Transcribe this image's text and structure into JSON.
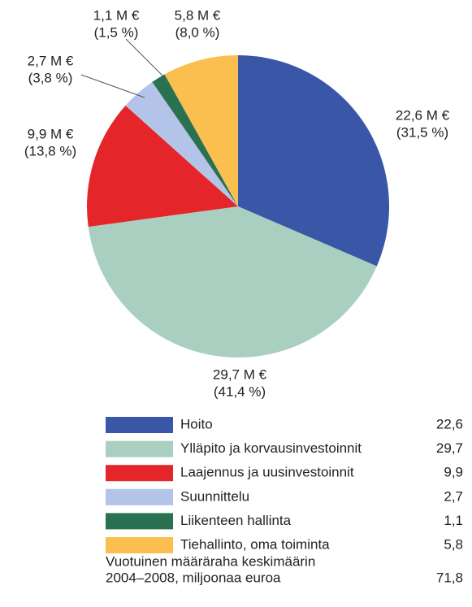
{
  "chart_data": {
    "type": "pie",
    "categories": [
      "Hoito",
      "Ylläpito ja korvausinvestoinnit",
      "Laajennus ja uusinvestoinnit",
      "Suunnittelu",
      "Liikenteen hallinta",
      "Tiehallinto, oma toiminta"
    ],
    "values": [
      22.6,
      29.7,
      9.9,
      2.7,
      1.1,
      5.8
    ],
    "value_labels": [
      "22,6 M €",
      "29,7 M €",
      "9,9 M €",
      "2,7 M €",
      "1,1 M €",
      "5,8 M €"
    ],
    "percent_labels": [
      "(31,5 %)",
      "(41,4 %)",
      "(13,8 %)",
      "(3,8 %)",
      "(1,5 %)",
      "(8,0 %)"
    ],
    "legend_value_labels": [
      "22,6",
      "29,7",
      "9,9",
      "2,7",
      "1,1",
      "5,8"
    ],
    "colors": [
      "#3a57a7",
      "#a9cfc0",
      "#e4262a",
      "#b4c3e8",
      "#2a7152",
      "#fbbf4f"
    ],
    "footnote": [
      "Vuotuinen määräraha keskimäärin",
      "2004–2008, miljoonaa euroa"
    ],
    "total": "71,8"
  }
}
